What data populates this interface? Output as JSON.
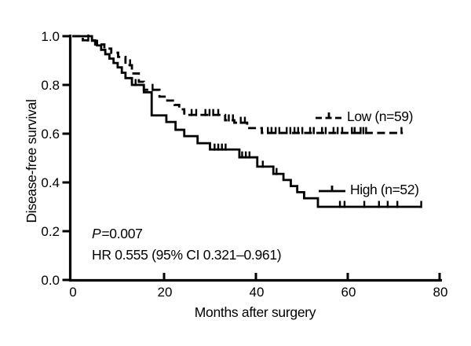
{
  "figure": {
    "background": "#ffffff",
    "ink_color": "#000000"
  },
  "chart_data": {
    "type": "line",
    "chart_style": "kaplan-meier-step",
    "title": "",
    "xlabel": "Months after surgery",
    "ylabel": "Disease-free survival",
    "xlim": [
      0,
      80
    ],
    "ylim": [
      0.0,
      1.0
    ],
    "xticks": [
      0,
      20,
      40,
      60,
      80
    ],
    "yticks": [
      0.0,
      0.2,
      0.4,
      0.6,
      0.8,
      1.0
    ],
    "ytick_labels": [
      "0.0",
      "0.2",
      "0.4",
      "0.6",
      "0.8",
      "1.0"
    ],
    "grid": false,
    "legend_position": "inside-right",
    "series": [
      {
        "name": "Low (n=59)",
        "line_style": "dashed",
        "end_time": 72,
        "steps": [
          [
            0,
            1.0
          ],
          [
            2.3,
            0.983
          ],
          [
            5,
            0.966
          ],
          [
            7,
            0.949
          ],
          [
            8.5,
            0.932
          ],
          [
            10,
            0.915
          ],
          [
            11.6,
            0.881
          ],
          [
            13,
            0.847
          ],
          [
            14.5,
            0.813
          ],
          [
            15.6,
            0.78
          ],
          [
            19,
            0.752
          ],
          [
            20.7,
            0.736
          ],
          [
            22.3,
            0.718
          ],
          [
            23.3,
            0.7
          ],
          [
            24.4,
            0.677
          ],
          [
            33.3,
            0.655
          ],
          [
            35.3,
            0.645
          ],
          [
            38.1,
            0.623
          ],
          [
            41.3,
            0.603
          ]
        ],
        "censor_times": [
          3.5,
          12.6,
          17.5,
          26,
          27,
          29,
          29.9,
          30.7,
          31.8,
          34.1,
          35,
          36.7,
          37.6,
          42.6,
          43.4,
          44.3,
          45.1,
          46.7,
          47.5,
          48.4,
          49.2,
          50.1,
          51.8,
          52.6,
          54.4,
          55.2,
          56.9,
          57.8,
          58.8,
          60.9,
          61.5,
          62.8,
          63.4,
          64.0,
          71.7
        ]
      },
      {
        "name": "High (n=52)",
        "line_style": "solid",
        "end_time": 76,
        "steps": [
          [
            0,
            1.0
          ],
          [
            4.3,
            0.981
          ],
          [
            5.4,
            0.962
          ],
          [
            6.3,
            0.944
          ],
          [
            7.2,
            0.926
          ],
          [
            8.1,
            0.908
          ],
          [
            9,
            0.89
          ],
          [
            9.9,
            0.872
          ],
          [
            10.8,
            0.85
          ],
          [
            11.6,
            0.828
          ],
          [
            13,
            0.8
          ],
          [
            15.6,
            0.77
          ],
          [
            17.3,
            0.675
          ],
          [
            20.5,
            0.648
          ],
          [
            22.5,
            0.616
          ],
          [
            24.4,
            0.59
          ],
          [
            27.3,
            0.561
          ],
          [
            30,
            0.535
          ],
          [
            36.4,
            0.503
          ],
          [
            40.3,
            0.465
          ],
          [
            43.8,
            0.435
          ],
          [
            46,
            0.41
          ],
          [
            47.6,
            0.385
          ],
          [
            49,
            0.36
          ],
          [
            50.5,
            0.335
          ],
          [
            53.5,
            0.3
          ]
        ],
        "censor_times": [
          13.8,
          31,
          31.8,
          32.6,
          33.4,
          37,
          37.8,
          38.6,
          41.5,
          44.5,
          58.3,
          59.3,
          63.6,
          66.8,
          68.7,
          70.8,
          76
        ]
      }
    ],
    "annotations": [
      {
        "prefix": "P",
        "text": "=0.007"
      },
      {
        "prefix": "",
        "text": "HR 0.555 (95% CI 0.321–0.961)"
      }
    ]
  }
}
